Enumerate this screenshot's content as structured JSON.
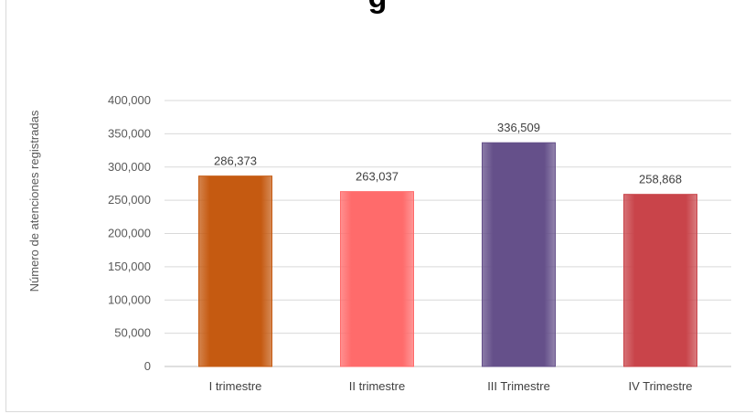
{
  "chart_data": {
    "type": "bar",
    "title": "g",
    "ylabel": "Número de atenciones registradas",
    "xlabel": "",
    "categories": [
      "I trimestre",
      "II trimestre",
      "III Trimestre",
      "IV Trimestre"
    ],
    "values": [
      286373,
      263037,
      336509,
      258868
    ],
    "data_labels": [
      "286,373",
      "263,037",
      "336,509",
      "258,868"
    ],
    "ylim": [
      0,
      400000
    ],
    "yticks": [
      "0",
      "50,000",
      "100,000",
      "150,000",
      "200,000",
      "250,000",
      "300,000",
      "350,000",
      "400,000"
    ],
    "grid": true,
    "legend": "none",
    "colors": [
      "#c55a11",
      "#ff6b6b",
      "#65508a",
      "#c9444a"
    ]
  }
}
